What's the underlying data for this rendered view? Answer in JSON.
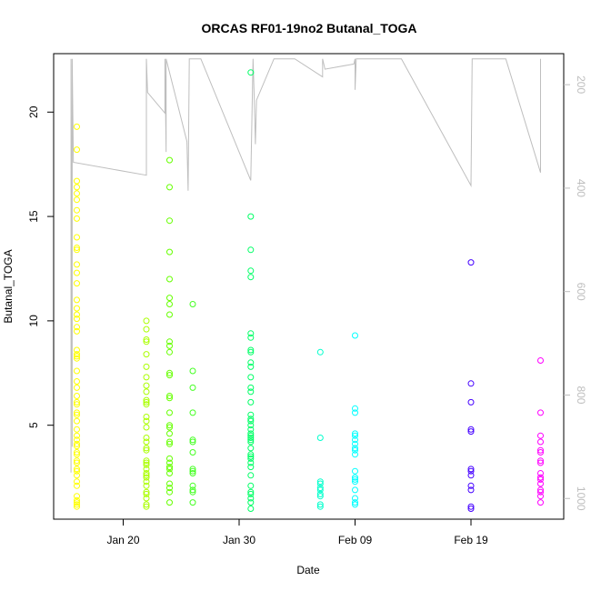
{
  "chart_data": {
    "type": "scatter",
    "title": "ORCAS RF01-19no2 Butanal_TOGA",
    "xlabel": "Date",
    "ylabel": "Butanal_TOGA",
    "x_ticks": [
      "Jan 20",
      "Jan 30",
      "Feb 09",
      "Feb 19"
    ],
    "y_ticks": [
      "5",
      "10",
      "15",
      "20"
    ],
    "y2_ticks": [
      "200",
      "400",
      "600",
      "800",
      "1000"
    ],
    "xlim": [
      "2016-01-14",
      "2016-02-27"
    ],
    "ylim": [
      0.5,
      22.8
    ],
    "y2lim": [
      1040,
      140
    ],
    "y2_reversed": true,
    "grid": false,
    "colors": {
      "pressure_line": "#bebebe",
      "frame": "#000000",
      "right_axis": "#bebebe"
    },
    "series": [
      {
        "color": "#ffff00",
        "x": "2016-01-16",
        "values": [
          19.3,
          18.2,
          16.7,
          16.4,
          16.1,
          15.8,
          15.3,
          14.9,
          14.0,
          13.5,
          13.4,
          12.7,
          12.3,
          11.8,
          11.0,
          10.6,
          10.3,
          10.1,
          9.7,
          9.5,
          8.6,
          8.4,
          8.3,
          8.2,
          7.6,
          7.1,
          6.8,
          6.4,
          6.1,
          6.0,
          5.6,
          5.5,
          5.2,
          4.8,
          4.5,
          4.3,
          4.1,
          4.0,
          3.7,
          3.6,
          3.3,
          3.2,
          2.9,
          2.8,
          2.6,
          2.3,
          2.1,
          1.6,
          1.4,
          1.3,
          1.2,
          1.1
        ]
      },
      {
        "color": "#aaff00",
        "x": "2016-01-22",
        "values": [
          10.0,
          9.6,
          9.1,
          9.0,
          8.4,
          7.8,
          7.3,
          6.9,
          6.6,
          6.2,
          6.1,
          6.0,
          5.4,
          5.2,
          4.9,
          4.4,
          4.2,
          3.9,
          3.8,
          3.3,
          3.2,
          3.1,
          2.9,
          2.7,
          2.6,
          2.5,
          2.3,
          2.1,
          1.8,
          1.7,
          1.5,
          1.2,
          1.1
        ]
      },
      {
        "color": "#66ff00",
        "x": "2016-01-24",
        "values": [
          17.7,
          16.4,
          14.8,
          13.3,
          12.0,
          11.1,
          10.8,
          10.3,
          9.0,
          8.8,
          8.5,
          7.5,
          7.4,
          6.4,
          6.3,
          5.6,
          5.0,
          4.9,
          4.6,
          4.2,
          4.1,
          3.4,
          3.2,
          3.0,
          2.9,
          2.7,
          2.2,
          2.0,
          1.8,
          1.3
        ]
      },
      {
        "color": "#44ff22",
        "x": "2016-01-26",
        "values": [
          10.8,
          7.6,
          6.8,
          5.6,
          4.3,
          4.2,
          3.7,
          2.9,
          2.8,
          2.7,
          2.1,
          1.9,
          1.8,
          1.3
        ]
      },
      {
        "color": "#00ff66",
        "x": "2016-01-31",
        "values": [
          21.9,
          15.0,
          13.4,
          12.4,
          12.1,
          9.4,
          9.2,
          8.6,
          8.5,
          8.0,
          7.8,
          7.3,
          6.8,
          6.6,
          6.1,
          5.5,
          5.3,
          5.2,
          5.0,
          4.8,
          4.6,
          4.5,
          4.4,
          4.3,
          4.2,
          3.9,
          3.6,
          3.5,
          3.4,
          3.2,
          3.0,
          2.6,
          2.1,
          1.8,
          1.7,
          1.5,
          1.3,
          1.0
        ]
      },
      {
        "color": "#00ffcc",
        "x": "2016-02-06",
        "values": [
          8.5,
          4.4,
          2.3,
          2.2,
          2.0,
          1.9,
          1.7,
          1.6,
          1.2,
          1.1
        ]
      },
      {
        "color": "#00ffff",
        "x": "2016-02-09",
        "values": [
          9.3,
          5.8,
          5.6,
          4.6,
          4.5,
          4.3,
          4.1,
          3.9,
          3.8,
          3.6,
          2.8,
          2.5,
          2.4,
          2.3,
          1.9,
          1.5,
          1.3,
          1.2
        ]
      },
      {
        "color": "#4400ff",
        "x": "2016-02-19",
        "values": [
          12.8,
          7.0,
          6.1,
          4.8,
          4.7,
          2.9,
          2.8,
          2.6,
          2.1,
          1.9,
          1.1,
          1.0
        ]
      },
      {
        "color": "#ff00ff",
        "x": "2016-02-25",
        "values": [
          8.1,
          5.6,
          4.5,
          4.2,
          3.8,
          3.7,
          3.3,
          3.2,
          2.7,
          2.5,
          2.4,
          2.2,
          1.9,
          1.8,
          1.6,
          1.3
        ]
      }
    ],
    "pressure_line": {
      "color": "#bebebe",
      "points": [
        [
          "2016-01-15.5",
          150
        ],
        [
          "2016-01-15.5",
          950
        ],
        [
          "2016-01-15.5",
          150
        ],
        [
          "2016-01-15.6",
          900
        ],
        [
          "2016-01-15.6",
          150
        ],
        [
          "2016-01-15.7",
          350
        ],
        [
          "2016-01-22",
          375
        ],
        [
          "2016-01-22",
          150
        ],
        [
          "2016-01-22.1",
          215
        ],
        [
          "2016-01-23.6",
          255
        ],
        [
          "2016-01-23.6",
          150
        ],
        [
          "2016-01-23.7",
          330
        ],
        [
          "2016-01-23.7",
          150
        ],
        [
          "2016-01-25.5",
          310
        ],
        [
          "2016-01-25.6",
          405
        ],
        [
          "2016-01-25.7",
          150
        ],
        [
          "2016-01-26.7",
          150
        ],
        [
          "2016-01-31",
          385
        ],
        [
          "2016-01-31.2",
          150
        ],
        [
          "2016-01-31.3",
          225
        ],
        [
          "2016-01-31.4",
          315
        ],
        [
          "2016-01-31.5",
          230
        ],
        [
          "2016-02-02",
          150
        ],
        [
          "2016-02-03",
          150
        ],
        [
          "2016-02-03.8",
          150
        ],
        [
          "2016-02-06.2",
          185
        ],
        [
          "2016-02-06.2",
          150
        ],
        [
          "2016-02-06.4",
          170
        ],
        [
          "2016-02-08.9",
          160
        ],
        [
          "2016-02-09",
          150
        ],
        [
          "2016-02-09",
          210
        ],
        [
          "2016-02-09.1",
          150
        ],
        [
          "2016-02-13",
          150
        ],
        [
          "2016-02-19",
          395
        ],
        [
          "2016-02-19.1",
          150
        ],
        [
          "2016-02-22",
          150
        ],
        [
          "2016-02-25",
          370
        ],
        [
          "2016-02-25",
          150
        ]
      ]
    }
  }
}
